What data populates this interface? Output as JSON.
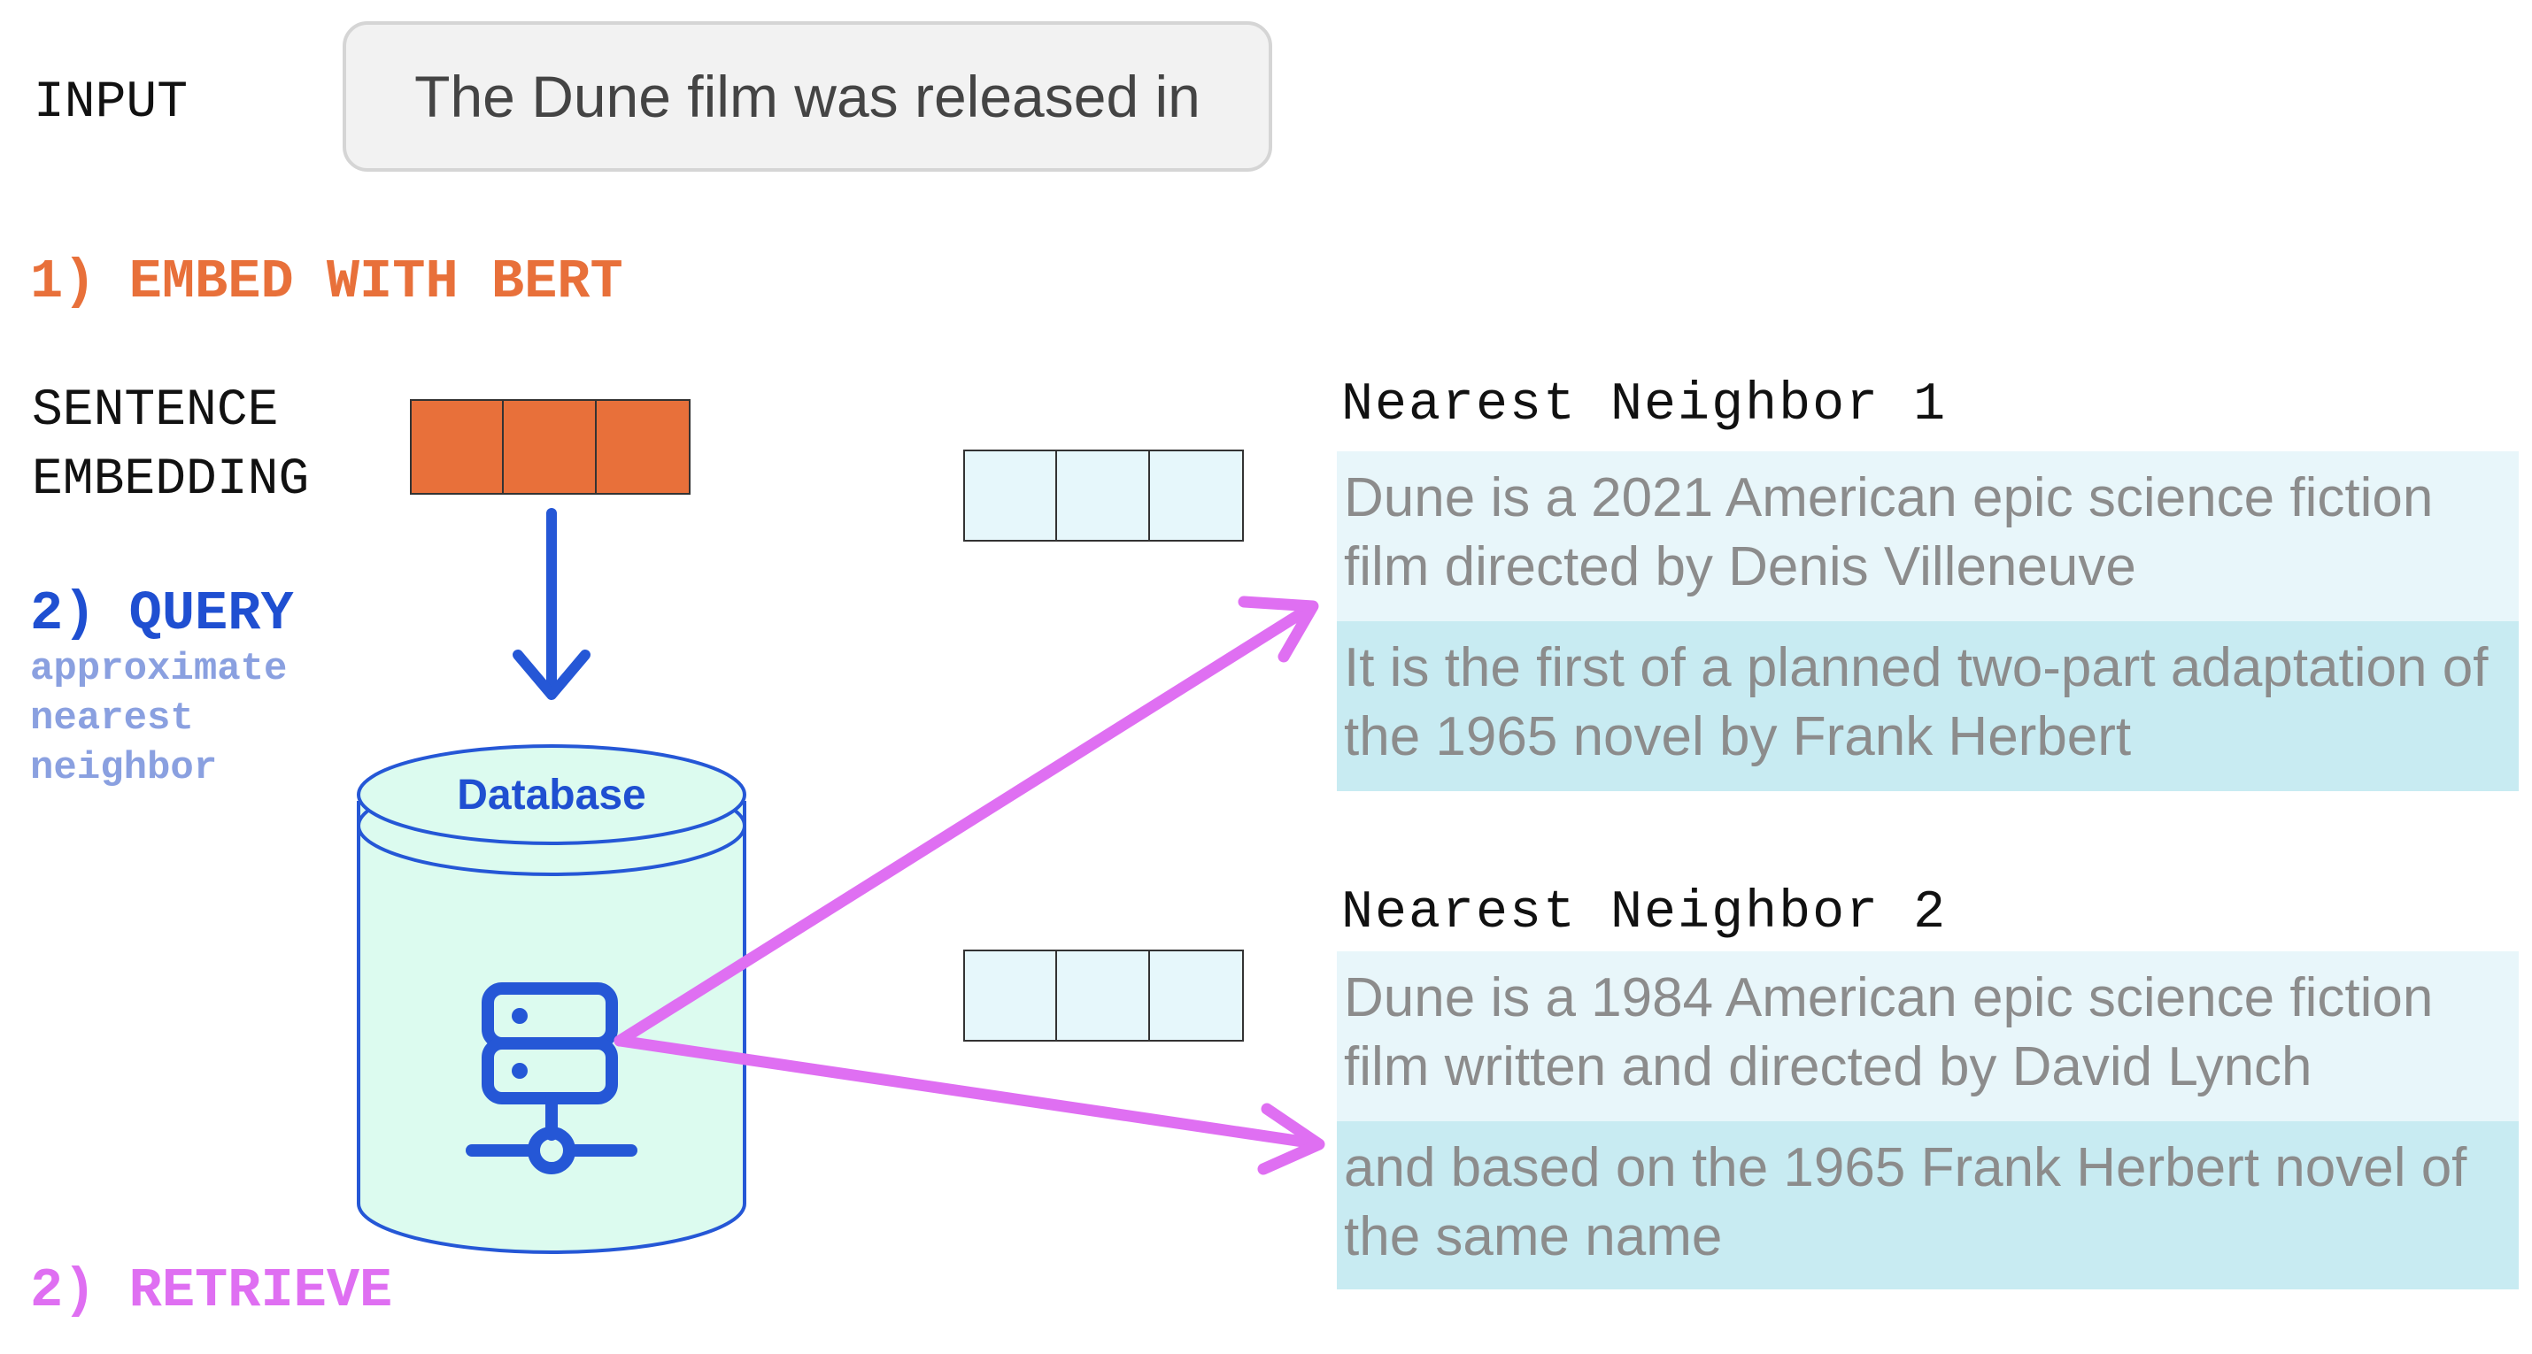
{
  "input": {
    "label": "INPUT",
    "text": "The Dune film was released in"
  },
  "steps": {
    "embed": {
      "label": "1) EMBED WITH BERT",
      "color": "#e8703a"
    },
    "query": {
      "label": "2) QUERY",
      "color": "#1f4fd1",
      "sublabel_lines": [
        "approximate",
        "nearest",
        "neighbor"
      ]
    },
    "retrieve": {
      "label": "2) RETRIEVE",
      "color": "#df6ff2"
    }
  },
  "embedding": {
    "label_lines": [
      "SENTENCE",
      "EMBEDDING"
    ],
    "cells": 3,
    "color": "#e8703a"
  },
  "database": {
    "label": "Database",
    "fill": "#dcfbef",
    "stroke": "#2557d6"
  },
  "neighbors": [
    {
      "title": "Nearest Neighbor 1",
      "chunks": [
        "Dune is a 2021 American epic science fiction film directed by Denis Villeneuve",
        "It is the first of a planned two-part adaptation of the 1965 novel by Frank Herbert"
      ]
    },
    {
      "title": "Nearest Neighbor 2",
      "chunks": [
        "Dune is a 1984 American epic science fiction film written and directed by David Lynch",
        "and based on the 1965 Frank Herbert novel of the same name"
      ]
    }
  ],
  "colors": {
    "chunk_light": "#e8f6fa",
    "chunk_dark": "#c8ebf2",
    "neighbor_vector": "#e6f7fb",
    "query_arrow": "#2557d6",
    "retrieve_arrow": "#df6ff2"
  }
}
